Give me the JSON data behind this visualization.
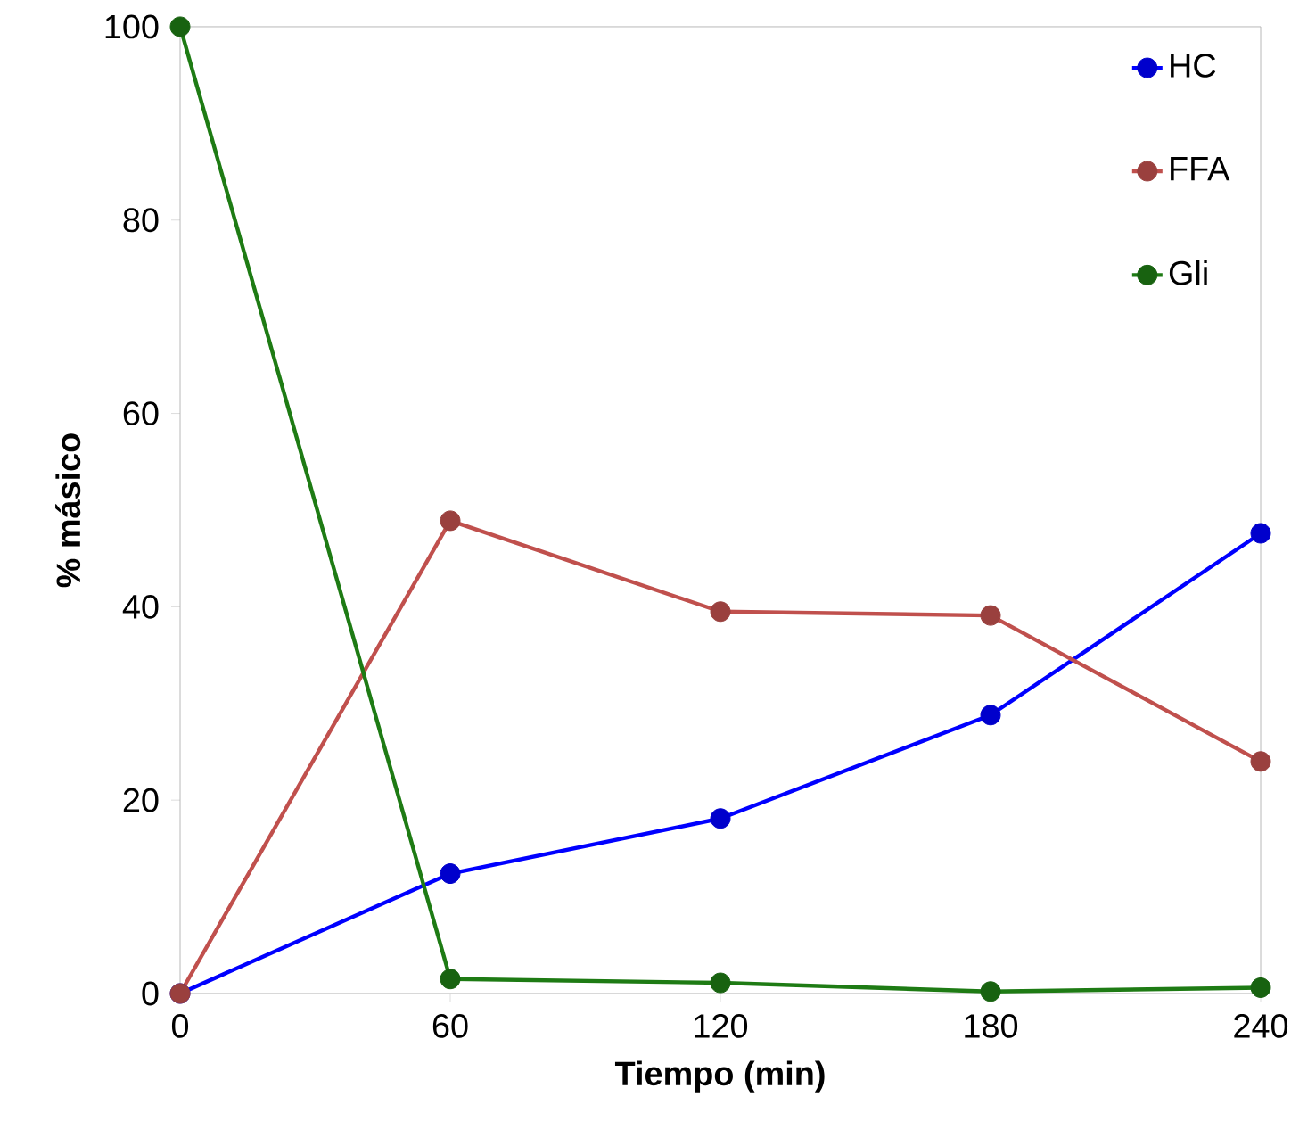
{
  "chart_data": {
    "type": "line",
    "xlabel": "Tiempo (min)",
    "ylabel": "% másico",
    "x": [
      0,
      60,
      120,
      180,
      240
    ],
    "xlim": [
      0,
      240
    ],
    "xticks": [
      0,
      60,
      120,
      180,
      240
    ],
    "ylim": [
      0,
      100
    ],
    "yticks": [
      0,
      20,
      40,
      60,
      80,
      100
    ],
    "legend": "top right",
    "marker": "circle",
    "grid": false,
    "series": [
      {
        "name": "HC",
        "color": "#0000ff",
        "values": [
          0,
          12.4,
          18.1,
          28.8,
          47.6
        ]
      },
      {
        "name": "FFA",
        "color": "#c0504d",
        "values": [
          0,
          48.9,
          39.5,
          39.1,
          24.0
        ]
      },
      {
        "name": "Gli",
        "color": "#1e7b14",
        "values": [
          100,
          1.5,
          1.1,
          0.2,
          0.6
        ]
      }
    ]
  }
}
